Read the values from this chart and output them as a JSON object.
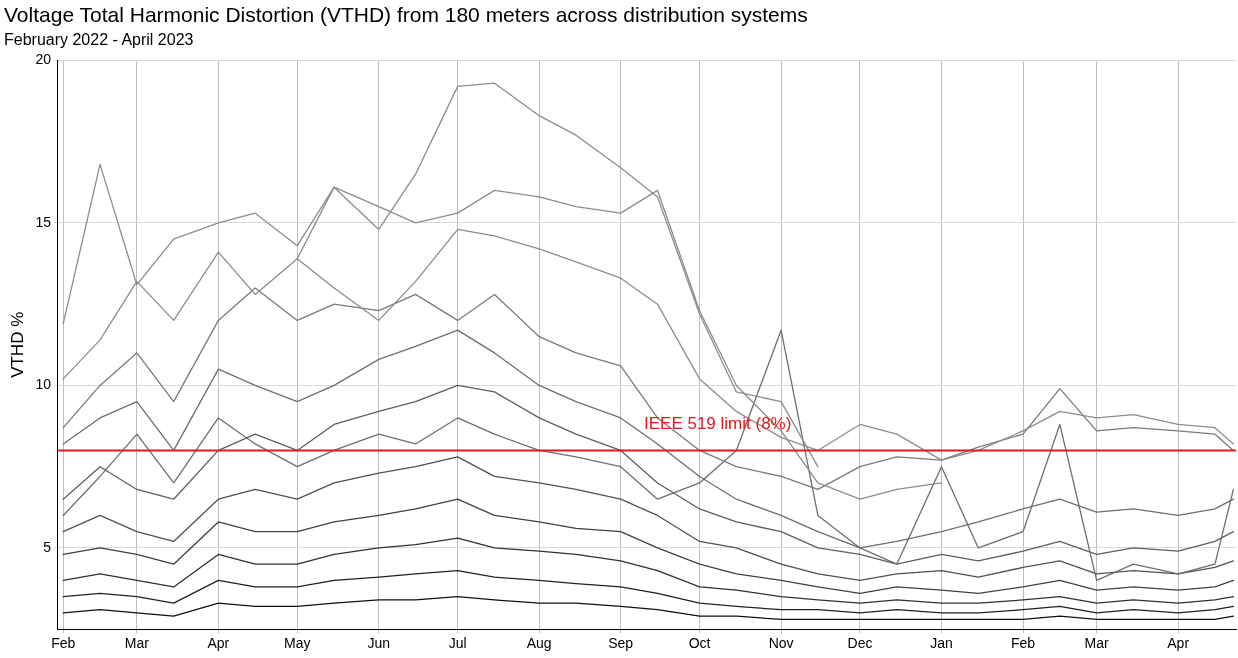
{
  "chart_data": {
    "type": "line",
    "title": "Voltage Total Harmonic Distortion (VTHD) from 180 meters across distribution systems",
    "subtitle": "February 2022 - April 2023",
    "ylabel": "VTHD %",
    "x": [
      "2022-02-01",
      "2022-02-15",
      "2022-03-01",
      "2022-03-15",
      "2022-04-01",
      "2022-04-15",
      "2022-05-01",
      "2022-05-15",
      "2022-06-01",
      "2022-06-15",
      "2022-07-01",
      "2022-07-15",
      "2022-08-01",
      "2022-08-15",
      "2022-09-01",
      "2022-09-15",
      "2022-10-01",
      "2022-10-15",
      "2022-11-01",
      "2022-11-15",
      "2022-12-01",
      "2022-12-15",
      "2023-01-01",
      "2023-01-15",
      "2023-02-01",
      "2023-02-15",
      "2023-03-01",
      "2023-03-15",
      "2023-04-01",
      "2023-04-15",
      "2023-04-22"
    ],
    "xlim": [
      "2022-01-30",
      "2023-04-23"
    ],
    "xticks": [
      {
        "value": "2022-02-01",
        "label": "Feb"
      },
      {
        "value": "2022-03-01",
        "label": "Mar"
      },
      {
        "value": "2022-04-01",
        "label": "Apr"
      },
      {
        "value": "2022-05-01",
        "label": "May"
      },
      {
        "value": "2022-06-01",
        "label": "Jun"
      },
      {
        "value": "2022-07-01",
        "label": "Jul"
      },
      {
        "value": "2022-08-01",
        "label": "Aug"
      },
      {
        "value": "2022-09-01",
        "label": "Sep"
      },
      {
        "value": "2022-10-01",
        "label": "Oct"
      },
      {
        "value": "2022-11-01",
        "label": "Nov"
      },
      {
        "value": "2022-12-01",
        "label": "Dec"
      },
      {
        "value": "2023-01-01",
        "label": "Jan"
      },
      {
        "value": "2023-02-01",
        "label": "Feb"
      },
      {
        "value": "2023-03-01",
        "label": "Mar"
      },
      {
        "value": "2023-04-01",
        "label": "Apr"
      }
    ],
    "ylim": [
      2.5,
      20
    ],
    "yticks": [
      5,
      10,
      15,
      20
    ],
    "grid": true,
    "legend": false,
    "marker": "none",
    "line_style": "solid",
    "ref_lines": [
      {
        "axis": "y",
        "value": 8,
        "label": "IEEE 519 limit (8%)",
        "color": "#e31a1c"
      }
    ],
    "series": [
      {
        "color": "#8c8c8c",
        "values": [
          null,
          null,
          null,
          null,
          null,
          null,
          13.9,
          16.1,
          14.8,
          16.5,
          19.2,
          19.3,
          18.3,
          17.7,
          16.7,
          15.8,
          12.2,
          9.8,
          9.5,
          7.5,
          null,
          null,
          null,
          null,
          null,
          null,
          null,
          null,
          null,
          null,
          null
        ]
      },
      {
        "color": "#8c8c8c",
        "values": [
          11.9,
          16.8,
          13.1,
          14.5,
          15.0,
          15.3,
          14.3,
          16.1,
          15.5,
          15.0,
          15.3,
          16.0,
          15.8,
          15.5,
          15.3,
          16.0,
          12.3,
          10.0,
          8.6,
          7.0,
          6.5,
          6.8,
          7.0,
          null,
          null,
          null,
          null,
          null,
          null,
          null,
          null
        ]
      },
      {
        "color": "#8c8c8c",
        "values": [
          10.2,
          11.4,
          13.2,
          12.0,
          14.1,
          12.8,
          13.9,
          13.0,
          12.0,
          13.2,
          14.8,
          14.6,
          14.2,
          13.8,
          13.3,
          12.5,
          10.2,
          9.2,
          8.4,
          8.0,
          8.8,
          8.5,
          7.7,
          8.0,
          8.6,
          9.2,
          9.0,
          9.1,
          8.8,
          8.7,
          8.2
        ]
      },
      {
        "color": "#7a7a7a",
        "values": [
          8.7,
          10.0,
          11.0,
          9.5,
          12.0,
          13.0,
          12.0,
          12.5,
          12.3,
          12.8,
          12.0,
          12.8,
          11.5,
          11.0,
          10.6,
          9.0,
          8.0,
          7.5,
          7.2,
          6.8,
          7.5,
          7.8,
          7.7,
          8.1,
          8.5,
          9.9,
          8.6,
          8.7,
          8.6,
          8.5,
          8.0
        ]
      },
      {
        "color": "#6e6e6e",
        "values": [
          8.2,
          9.0,
          9.5,
          8.0,
          10.5,
          10.0,
          9.5,
          10.0,
          10.8,
          11.2,
          11.7,
          11.0,
          10.0,
          9.5,
          9.0,
          8.2,
          7.2,
          6.5,
          6.0,
          5.5,
          5.0,
          5.2,
          5.5,
          5.8,
          6.2,
          6.5,
          6.1,
          6.2,
          6.0,
          6.2,
          6.5
        ]
      },
      {
        "color": "#6e6e6e",
        "values": [
          6.0,
          7.2,
          8.5,
          7.0,
          9.0,
          8.2,
          7.5,
          8.0,
          8.5,
          8.2,
          9.0,
          8.5,
          8.0,
          7.8,
          7.5,
          6.5,
          7.0,
          8.0,
          11.7,
          6.0,
          5.0,
          4.5,
          7.5,
          5.0,
          5.5,
          8.8,
          4.0,
          4.5,
          4.2,
          4.5,
          6.8
        ]
      },
      {
        "color": "#5e5e5e",
        "values": [
          6.5,
          7.5,
          6.8,
          6.5,
          8.0,
          8.5,
          8.0,
          8.8,
          9.2,
          9.5,
          10.0,
          9.8,
          9.0,
          8.5,
          8.0,
          7.0,
          6.2,
          5.8,
          5.5,
          5.0,
          4.8,
          4.5,
          4.8,
          4.6,
          4.9,
          5.2,
          4.8,
          5.0,
          4.9,
          5.2,
          5.5
        ]
      },
      {
        "color": "#505050",
        "values": [
          5.5,
          6.0,
          5.5,
          5.2,
          6.5,
          6.8,
          6.5,
          7.0,
          7.3,
          7.5,
          7.8,
          7.2,
          7.0,
          6.8,
          6.5,
          6.0,
          5.2,
          5.0,
          4.5,
          4.2,
          4.0,
          4.2,
          4.3,
          4.1,
          4.4,
          4.6,
          4.2,
          4.3,
          4.2,
          4.4,
          4.6
        ]
      },
      {
        "color": "#404040",
        "values": [
          4.8,
          5.0,
          4.8,
          4.5,
          5.8,
          5.5,
          5.5,
          5.8,
          6.0,
          6.2,
          6.5,
          6.0,
          5.8,
          5.6,
          5.5,
          5.0,
          4.5,
          4.2,
          4.0,
          3.8,
          3.6,
          3.8,
          3.7,
          3.6,
          3.8,
          4.0,
          3.7,
          3.8,
          3.7,
          3.8,
          4.0
        ]
      },
      {
        "color": "#303030",
        "values": [
          4.0,
          4.2,
          4.0,
          3.8,
          4.8,
          4.5,
          4.5,
          4.8,
          5.0,
          5.1,
          5.3,
          5.0,
          4.9,
          4.8,
          4.6,
          4.3,
          3.8,
          3.7,
          3.5,
          3.4,
          3.3,
          3.4,
          3.3,
          3.3,
          3.4,
          3.5,
          3.3,
          3.4,
          3.3,
          3.4,
          3.5
        ]
      },
      {
        "color": "#202020",
        "values": [
          3.5,
          3.6,
          3.5,
          3.3,
          4.0,
          3.8,
          3.8,
          4.0,
          4.1,
          4.2,
          4.3,
          4.1,
          4.0,
          3.9,
          3.8,
          3.6,
          3.3,
          3.2,
          3.1,
          3.1,
          3.0,
          3.1,
          3.0,
          3.0,
          3.1,
          3.2,
          3.0,
          3.1,
          3.0,
          3.1,
          3.2
        ]
      },
      {
        "color": "#101010",
        "values": [
          3.0,
          3.1,
          3.0,
          2.9,
          3.3,
          3.2,
          3.2,
          3.3,
          3.4,
          3.4,
          3.5,
          3.4,
          3.3,
          3.3,
          3.2,
          3.1,
          2.9,
          2.9,
          2.8,
          2.8,
          2.8,
          2.8,
          2.8,
          2.8,
          2.8,
          2.9,
          2.8,
          2.8,
          2.8,
          2.8,
          2.9
        ]
      }
    ]
  }
}
